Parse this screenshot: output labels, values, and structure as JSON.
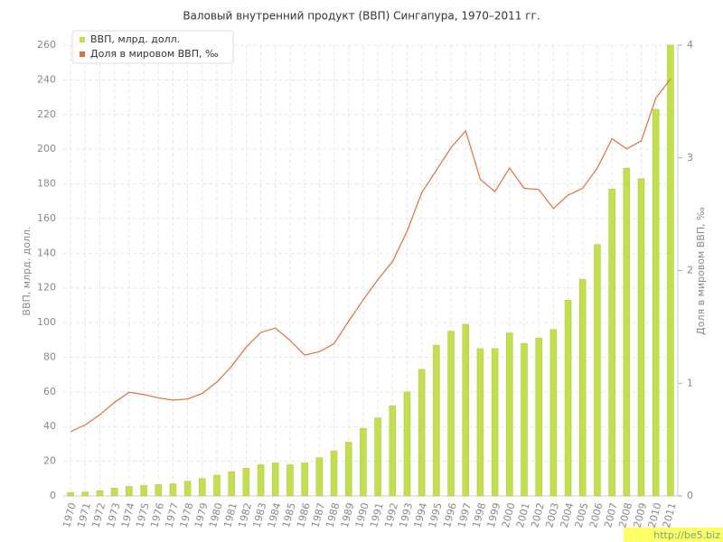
{
  "chart_data": {
    "type": "bar",
    "title": "Валовый внутренний продукт (ВВП) Сингапура, 1970–2011 гг.",
    "y_label": "ВВП, млрд. долл.",
    "y2_label": "Доля в мировом ВВП, ‰",
    "watermark": "http://be5.biz",
    "categories": [
      "1970",
      "1971",
      "1972",
      "1973",
      "1974",
      "1975",
      "1976",
      "1977",
      "1978",
      "1979",
      "1980",
      "1981",
      "1982",
      "1983",
      "1984",
      "1985",
      "1986",
      "1987",
      "1988",
      "1989",
      "1990",
      "1991",
      "1992",
      "1993",
      "1994",
      "1995",
      "1996",
      "1997",
      "1998",
      "1999",
      "2000",
      "2001",
      "2002",
      "2003",
      "2004",
      "2005",
      "2006",
      "2007",
      "2008",
      "2009",
      "2010",
      "2011"
    ],
    "series": [
      {
        "name": "ВВП, млрд. долл.",
        "type": "bar",
        "color": "#c3df4f",
        "values": [
          2,
          2.3,
          3,
          4.5,
          5.5,
          6,
          6.5,
          7,
          8.5,
          10,
          12,
          14,
          16,
          18,
          19,
          18,
          19,
          22,
          26,
          31,
          39,
          45,
          52,
          60,
          73,
          87,
          95,
          99,
          85,
          85,
          94,
          88,
          91,
          96,
          113,
          125,
          145,
          177,
          189,
          183,
          223,
          260
        ]
      },
      {
        "name": "Доля в мировом ВВП, ‰",
        "type": "line",
        "axis": "y2",
        "color": "#e07040",
        "values": [
          0.57,
          0.63,
          0.72,
          0.83,
          0.92,
          0.9,
          0.87,
          0.85,
          0.86,
          0.91,
          1.01,
          1.15,
          1.32,
          1.45,
          1.49,
          1.38,
          1.25,
          1.28,
          1.35,
          1.55,
          1.74,
          1.92,
          2.08,
          2.35,
          2.69,
          2.89,
          3.09,
          3.24,
          2.81,
          2.7,
          2.91,
          2.73,
          2.72,
          2.55,
          2.67,
          2.73,
          2.91,
          3.17,
          3.08,
          3.15,
          3.53,
          3.7
        ]
      }
    ],
    "ylim": [
      0,
      260
    ],
    "yticks": [
      0,
      20,
      40,
      60,
      80,
      100,
      120,
      140,
      160,
      180,
      200,
      220,
      240,
      260
    ],
    "y2lim": [
      0,
      4
    ],
    "y2ticks": [
      0,
      1,
      2,
      3,
      4
    ],
    "grid": true,
    "legend": "top-left"
  }
}
